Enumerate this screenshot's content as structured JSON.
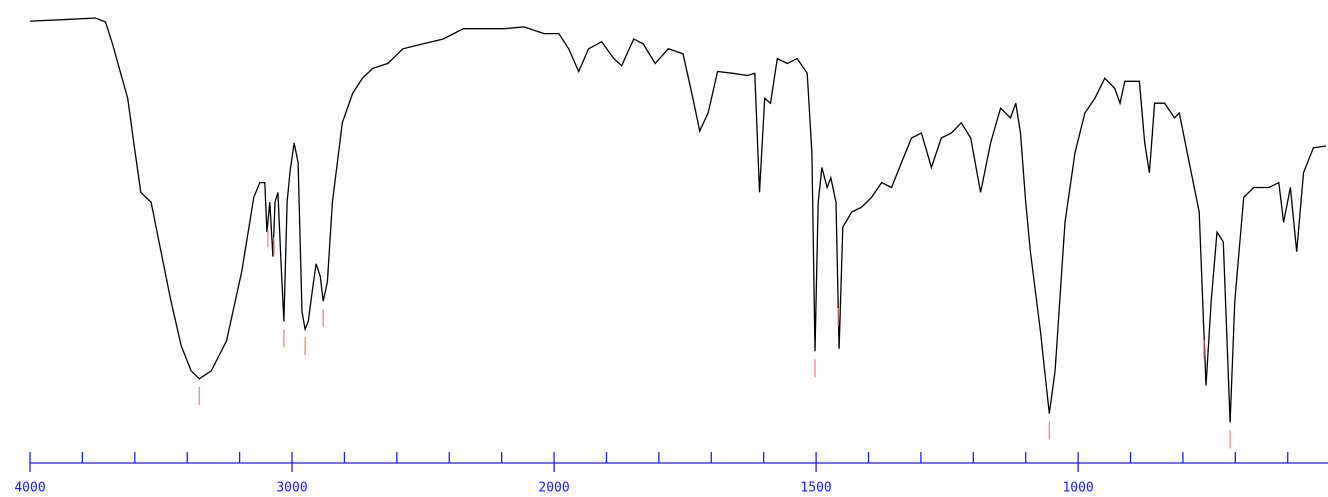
{
  "chart_data": {
    "type": "line",
    "x": [
      4000,
      3885,
      3750,
      3712,
      3685,
      3654,
      3627,
      3604,
      3577,
      3538,
      3500,
      3462,
      3423,
      3385,
      3354,
      3308,
      3250,
      3192,
      3146,
      3123,
      3104,
      3096,
      3085,
      3073,
      3065,
      3054,
      3042,
      3031,
      3019,
      3008,
      2992,
      2977,
      2962,
      2950,
      2938,
      2923,
      2908,
      2892,
      2881,
      2865,
      2846,
      2808,
      2769,
      2731,
      2692,
      2635,
      2577,
      2500,
      2423,
      2346,
      2269,
      2192,
      2115,
      2038,
      1991,
      1972,
      1953,
      1934,
      1909,
      1886,
      1871,
      1848,
      1830,
      1807,
      1782,
      1754,
      1735,
      1722,
      1706,
      1688,
      1659,
      1631,
      1617,
      1608,
      1598,
      1587,
      1574,
      1555,
      1536,
      1517,
      1508,
      1502,
      1496,
      1489,
      1479,
      1472,
      1462,
      1456,
      1449,
      1432,
      1413,
      1394,
      1375,
      1356,
      1337,
      1318,
      1299,
      1280,
      1261,
      1242,
      1223,
      1205,
      1186,
      1167,
      1148,
      1129,
      1119,
      1110,
      1100,
      1091,
      1072,
      1055,
      1044,
      1025,
      1006,
      987,
      968,
      949,
      930,
      920,
      911,
      883,
      873,
      864,
      854,
      835,
      816,
      807,
      788,
      769,
      756,
      746,
      735,
      723,
      710,
      701,
      684,
      665,
      636,
      617,
      608,
      595,
      583,
      570,
      551,
      527
    ],
    "series": [
      {
        "color": "#000000",
        "values": [
          98.4,
          98.7,
          99.1,
          98.2,
          93.3,
          86.7,
          81.1,
          71.1,
          60,
          57.8,
          46.7,
          35.6,
          25.6,
          20,
          18.2,
          20,
          26.7,
          42.2,
          58.9,
          62.2,
          62.2,
          51.1,
          57.8,
          45.6,
          57.8,
          60,
          44.4,
          31.1,
          57.8,
          64.4,
          71.1,
          66.7,
          33.3,
          29.3,
          31.1,
          37.8,
          44,
          41.1,
          35.6,
          40,
          57.8,
          75.6,
          82.2,
          85.6,
          87.8,
          88.9,
          92.2,
          93.3,
          94.4,
          96.7,
          96.7,
          96.7,
          97.1,
          95.6,
          95.6,
          92.2,
          87.1,
          92.2,
          93.8,
          90,
          88.4,
          94.4,
          93.3,
          88.9,
          92.2,
          91.1,
          81.1,
          73.8,
          77.8,
          87.1,
          86.7,
          86.2,
          86.7,
          60,
          81.1,
          80,
          90,
          88.9,
          90,
          86.7,
          68.9,
          24.4,
          57.8,
          65.6,
          61.1,
          63.3,
          57.8,
          24.9,
          52.2,
          55.6,
          56.7,
          58.9,
          62.2,
          61.1,
          66.7,
          72.2,
          73.3,
          65.6,
          72.2,
          73.3,
          75.6,
          72.2,
          60,
          71.1,
          78.9,
          76.7,
          80,
          73.3,
          57.8,
          46.7,
          28.9,
          10.4,
          20,
          53.3,
          68.9,
          77.8,
          81.1,
          85.6,
          83.3,
          80,
          84.9,
          84.9,
          71.1,
          64.4,
          80,
          80,
          76.7,
          77.8,
          66.7,
          55.6,
          16.7,
          35.6,
          51.1,
          48.9,
          8.4,
          35.6,
          58.9,
          61.1,
          61.1,
          62.2,
          53.3,
          61.1,
          46.7,
          64.4,
          70,
          70.4
        ]
      }
    ],
    "peaks": [
      3354,
      3092,
      3069,
      3031,
      2950,
      2881,
      1502,
      1458,
      1055,
      760,
      710
    ],
    "peak_color": "#ff8080",
    "axis_color": "#1a1aff",
    "xlim": [
      4000,
      527
    ],
    "x_scale_break": 2000,
    "ylim": [
      0,
      100
    ],
    "xticks": [
      4000,
      3000,
      2000,
      1500,
      1000
    ],
    "xticks_minor": [
      3800,
      3600,
      3400,
      3200,
      2800,
      2600,
      2400,
      2200,
      1900,
      1800,
      1700,
      1600,
      1400,
      1300,
      1200,
      1100,
      900,
      800,
      700,
      600
    ]
  }
}
